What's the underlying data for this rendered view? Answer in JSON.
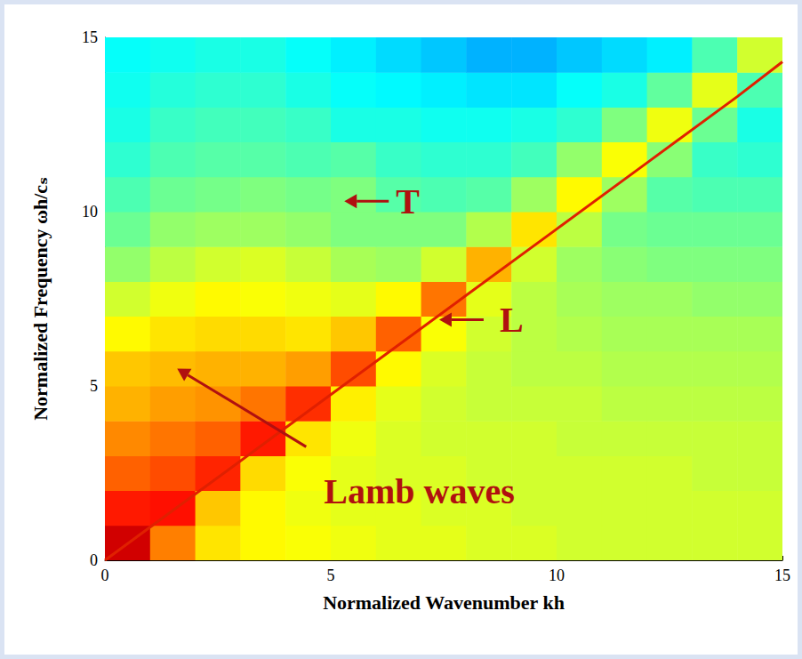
{
  "chart_data": {
    "type": "heatmap",
    "x_label": "Normalized Wavenumber kh",
    "y_label": "Normalized Frequency ωh/cₛ",
    "xlim": [
      0,
      15
    ],
    "xticks": [
      0,
      5,
      10,
      15
    ],
    "ylim": [
      0,
      15
    ],
    "yticks": [
      0,
      5,
      10,
      15
    ],
    "grid": false,
    "x_bins": [
      0,
      1,
      2,
      3,
      4,
      5,
      6,
      7,
      8,
      9,
      10,
      11,
      12,
      13,
      14,
      15
    ],
    "y_bins": [
      0,
      1,
      2,
      3,
      4,
      5,
      6,
      7,
      8,
      9,
      10,
      11,
      12,
      13,
      14,
      15
    ],
    "color_range": [
      0,
      10
    ],
    "cells": [
      [
        9.2,
        7.5,
        6.5,
        6.3,
        6.2,
        6.1,
        6.0,
        6.0,
        5.9,
        5.9,
        5.8,
        5.8,
        5.8,
        5.8,
        5.8
      ],
      [
        8.5,
        8.6,
        6.8,
        6.3,
        6.1,
        6.0,
        6.0,
        5.9,
        5.9,
        5.8,
        5.8,
        5.8,
        5.8,
        5.8,
        5.8
      ],
      [
        7.8,
        8.0,
        8.4,
        6.6,
        6.2,
        6.0,
        5.9,
        5.9,
        5.8,
        5.8,
        5.8,
        5.8,
        5.8,
        5.7,
        5.7
      ],
      [
        7.4,
        7.6,
        7.8,
        8.5,
        6.5,
        6.1,
        5.9,
        5.8,
        5.8,
        5.8,
        5.7,
        5.7,
        5.7,
        5.7,
        5.7
      ],
      [
        7.0,
        7.2,
        7.3,
        7.6,
        8.3,
        6.4,
        6.0,
        5.8,
        5.7,
        5.7,
        5.7,
        5.6,
        5.6,
        5.6,
        5.6
      ],
      [
        6.8,
        6.9,
        7.0,
        7.0,
        7.2,
        8.0,
        6.3,
        5.9,
        5.7,
        5.6,
        5.6,
        5.5,
        5.5,
        5.5,
        5.5
      ],
      [
        6.3,
        6.5,
        6.6,
        6.6,
        6.5,
        6.8,
        7.8,
        6.2,
        5.8,
        5.6,
        5.5,
        5.4,
        5.4,
        5.4,
        5.4
      ],
      [
        5.8,
        6.1,
        6.3,
        6.2,
        6.1,
        6.0,
        6.3,
        7.6,
        6.0,
        5.6,
        5.4,
        5.3,
        5.3,
        5.2,
        5.2
      ],
      [
        5.2,
        5.6,
        5.8,
        5.9,
        5.7,
        5.4,
        5.3,
        5.8,
        7.0,
        5.8,
        5.3,
        5.1,
        5.0,
        5.0,
        5.0
      ],
      [
        4.8,
        5.2,
        5.3,
        5.3,
        5.2,
        5.0,
        5.0,
        5.0,
        5.5,
        6.5,
        5.6,
        4.9,
        4.8,
        4.8,
        4.8
      ],
      [
        4.5,
        4.8,
        4.9,
        5.0,
        4.9,
        5.0,
        4.6,
        4.5,
        4.6,
        5.3,
        6.3,
        5.3,
        4.6,
        4.5,
        4.5
      ],
      [
        4.2,
        4.5,
        4.6,
        4.6,
        4.5,
        4.6,
        4.3,
        4.2,
        4.2,
        4.4,
        5.2,
        6.2,
        5.1,
        4.3,
        4.2
      ],
      [
        4.0,
        4.3,
        4.4,
        4.4,
        4.3,
        4.0,
        4.0,
        3.9,
        3.9,
        4.0,
        4.2,
        5.0,
        6.1,
        4.8,
        4.0
      ],
      [
        3.9,
        4.1,
        4.2,
        4.2,
        4.0,
        3.8,
        3.7,
        3.6,
        3.5,
        3.5,
        3.8,
        4.0,
        4.7,
        6.0,
        4.5
      ],
      [
        3.8,
        3.9,
        4.0,
        4.0,
        3.8,
        3.6,
        3.4,
        3.2,
        3.0,
        3.0,
        3.2,
        3.4,
        3.6,
        4.5,
        5.8
      ]
    ],
    "lines": [
      {
        "color": "#e02000",
        "line_style": "solid",
        "x": [
          0,
          2,
          4,
          6,
          8,
          10,
          12,
          14,
          15
        ],
        "y": [
          0,
          1.9,
          3.8,
          5.7,
          7.6,
          9.5,
          11.4,
          13.3,
          14.3
        ]
      }
    ],
    "annotations": [
      {
        "text": "T",
        "points_to": [
          5.3,
          10.3
        ],
        "color": "#b01010"
      },
      {
        "text": "L",
        "points_to": [
          7.4,
          6.9
        ],
        "color": "#b01010"
      },
      {
        "text": "Lamb waves",
        "points_to": [
          1.6,
          5.5
        ],
        "color": "#b01010"
      }
    ]
  }
}
